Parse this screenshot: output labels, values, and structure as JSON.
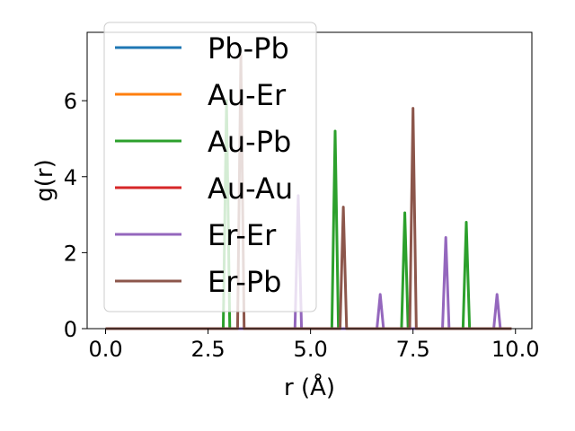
{
  "chart_data": {
    "type": "line",
    "xlabel": "r (Å)",
    "ylabel": "g(r)",
    "xlim": [
      -0.45,
      10.4
    ],
    "ylim": [
      0,
      7.8
    ],
    "xticks": [
      0.0,
      2.5,
      5.0,
      7.5,
      10.0
    ],
    "xtick_labels": [
      "0.0",
      "2.5",
      "5.0",
      "7.5",
      "10.0"
    ],
    "yticks": [
      0,
      2,
      4,
      6
    ],
    "ytick_labels": [
      "0",
      "2",
      "4",
      "6"
    ],
    "grid": false,
    "legend_position": "upper-left",
    "series": [
      {
        "name": "Pb-Pb",
        "color": "#1f77b4",
        "peaks": []
      },
      {
        "name": "Au-Er",
        "color": "#ff7f0e",
        "peaks": []
      },
      {
        "name": "Au-Pb",
        "color": "#2ca02c",
        "peaks": [
          [
            2.95,
            6.0
          ],
          [
            5.6,
            5.2
          ],
          [
            7.3,
            3.05
          ],
          [
            8.8,
            2.8
          ]
        ]
      },
      {
        "name": "Au-Au",
        "color": "#d62728",
        "peaks": []
      },
      {
        "name": "Er-Er",
        "color": "#9467bd",
        "peaks": [
          [
            4.7,
            3.5
          ],
          [
            6.7,
            0.9
          ],
          [
            8.3,
            2.4
          ],
          [
            9.55,
            0.9
          ]
        ]
      },
      {
        "name": "Er-Pb",
        "color": "#8c564b",
        "peaks": [
          [
            3.3,
            7.2
          ],
          [
            5.8,
            3.2
          ],
          [
            7.5,
            5.8
          ]
        ]
      }
    ],
    "x_range": [
      0.0,
      9.9
    ],
    "peak_halfwidth": 0.08
  }
}
